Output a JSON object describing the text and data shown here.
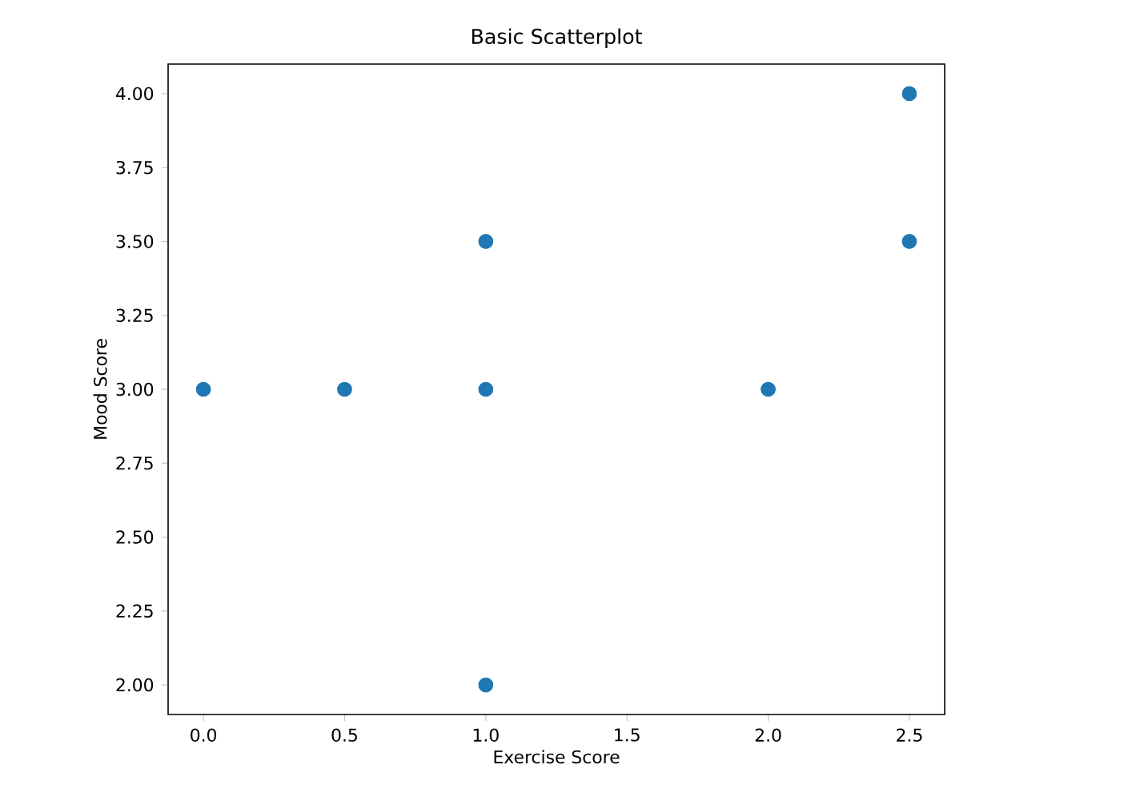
{
  "chart_data": {
    "type": "scatter",
    "title": "Basic Scatterplot",
    "xlabel": "Exercise Score",
    "ylabel": "Mood Score",
    "x": [
      0,
      0.5,
      1,
      1,
      1,
      2,
      2.5,
      2.5
    ],
    "series": [
      {
        "color": "#1f77b4",
        "values": [
          3,
          3,
          3,
          3.5,
          2,
          3,
          4,
          3.5
        ]
      }
    ],
    "marker": "circle",
    "grid": false,
    "xlim": [
      -0.125,
      2.625
    ],
    "ylim": [
      1.9,
      4.1
    ],
    "xticks": [
      {
        "value": 0,
        "label": "0.0"
      },
      {
        "value": 0.5,
        "label": "0.5"
      },
      {
        "value": 1,
        "label": "1.0"
      },
      {
        "value": 1.5,
        "label": "1.5"
      },
      {
        "value": 2,
        "label": "2.0"
      },
      {
        "value": 2.5,
        "label": "2.5"
      }
    ],
    "yticks": [
      {
        "value": 2,
        "label": "2.00"
      },
      {
        "value": 2.25,
        "label": "2.25"
      },
      {
        "value": 2.5,
        "label": "2.50"
      },
      {
        "value": 2.75,
        "label": "2.75"
      },
      {
        "value": 3,
        "label": "3.00"
      },
      {
        "value": 3.25,
        "label": "3.25"
      },
      {
        "value": 3.5,
        "label": "3.50"
      },
      {
        "value": 3.75,
        "label": "3.75"
      },
      {
        "value": 4,
        "label": "4.00"
      }
    ]
  }
}
